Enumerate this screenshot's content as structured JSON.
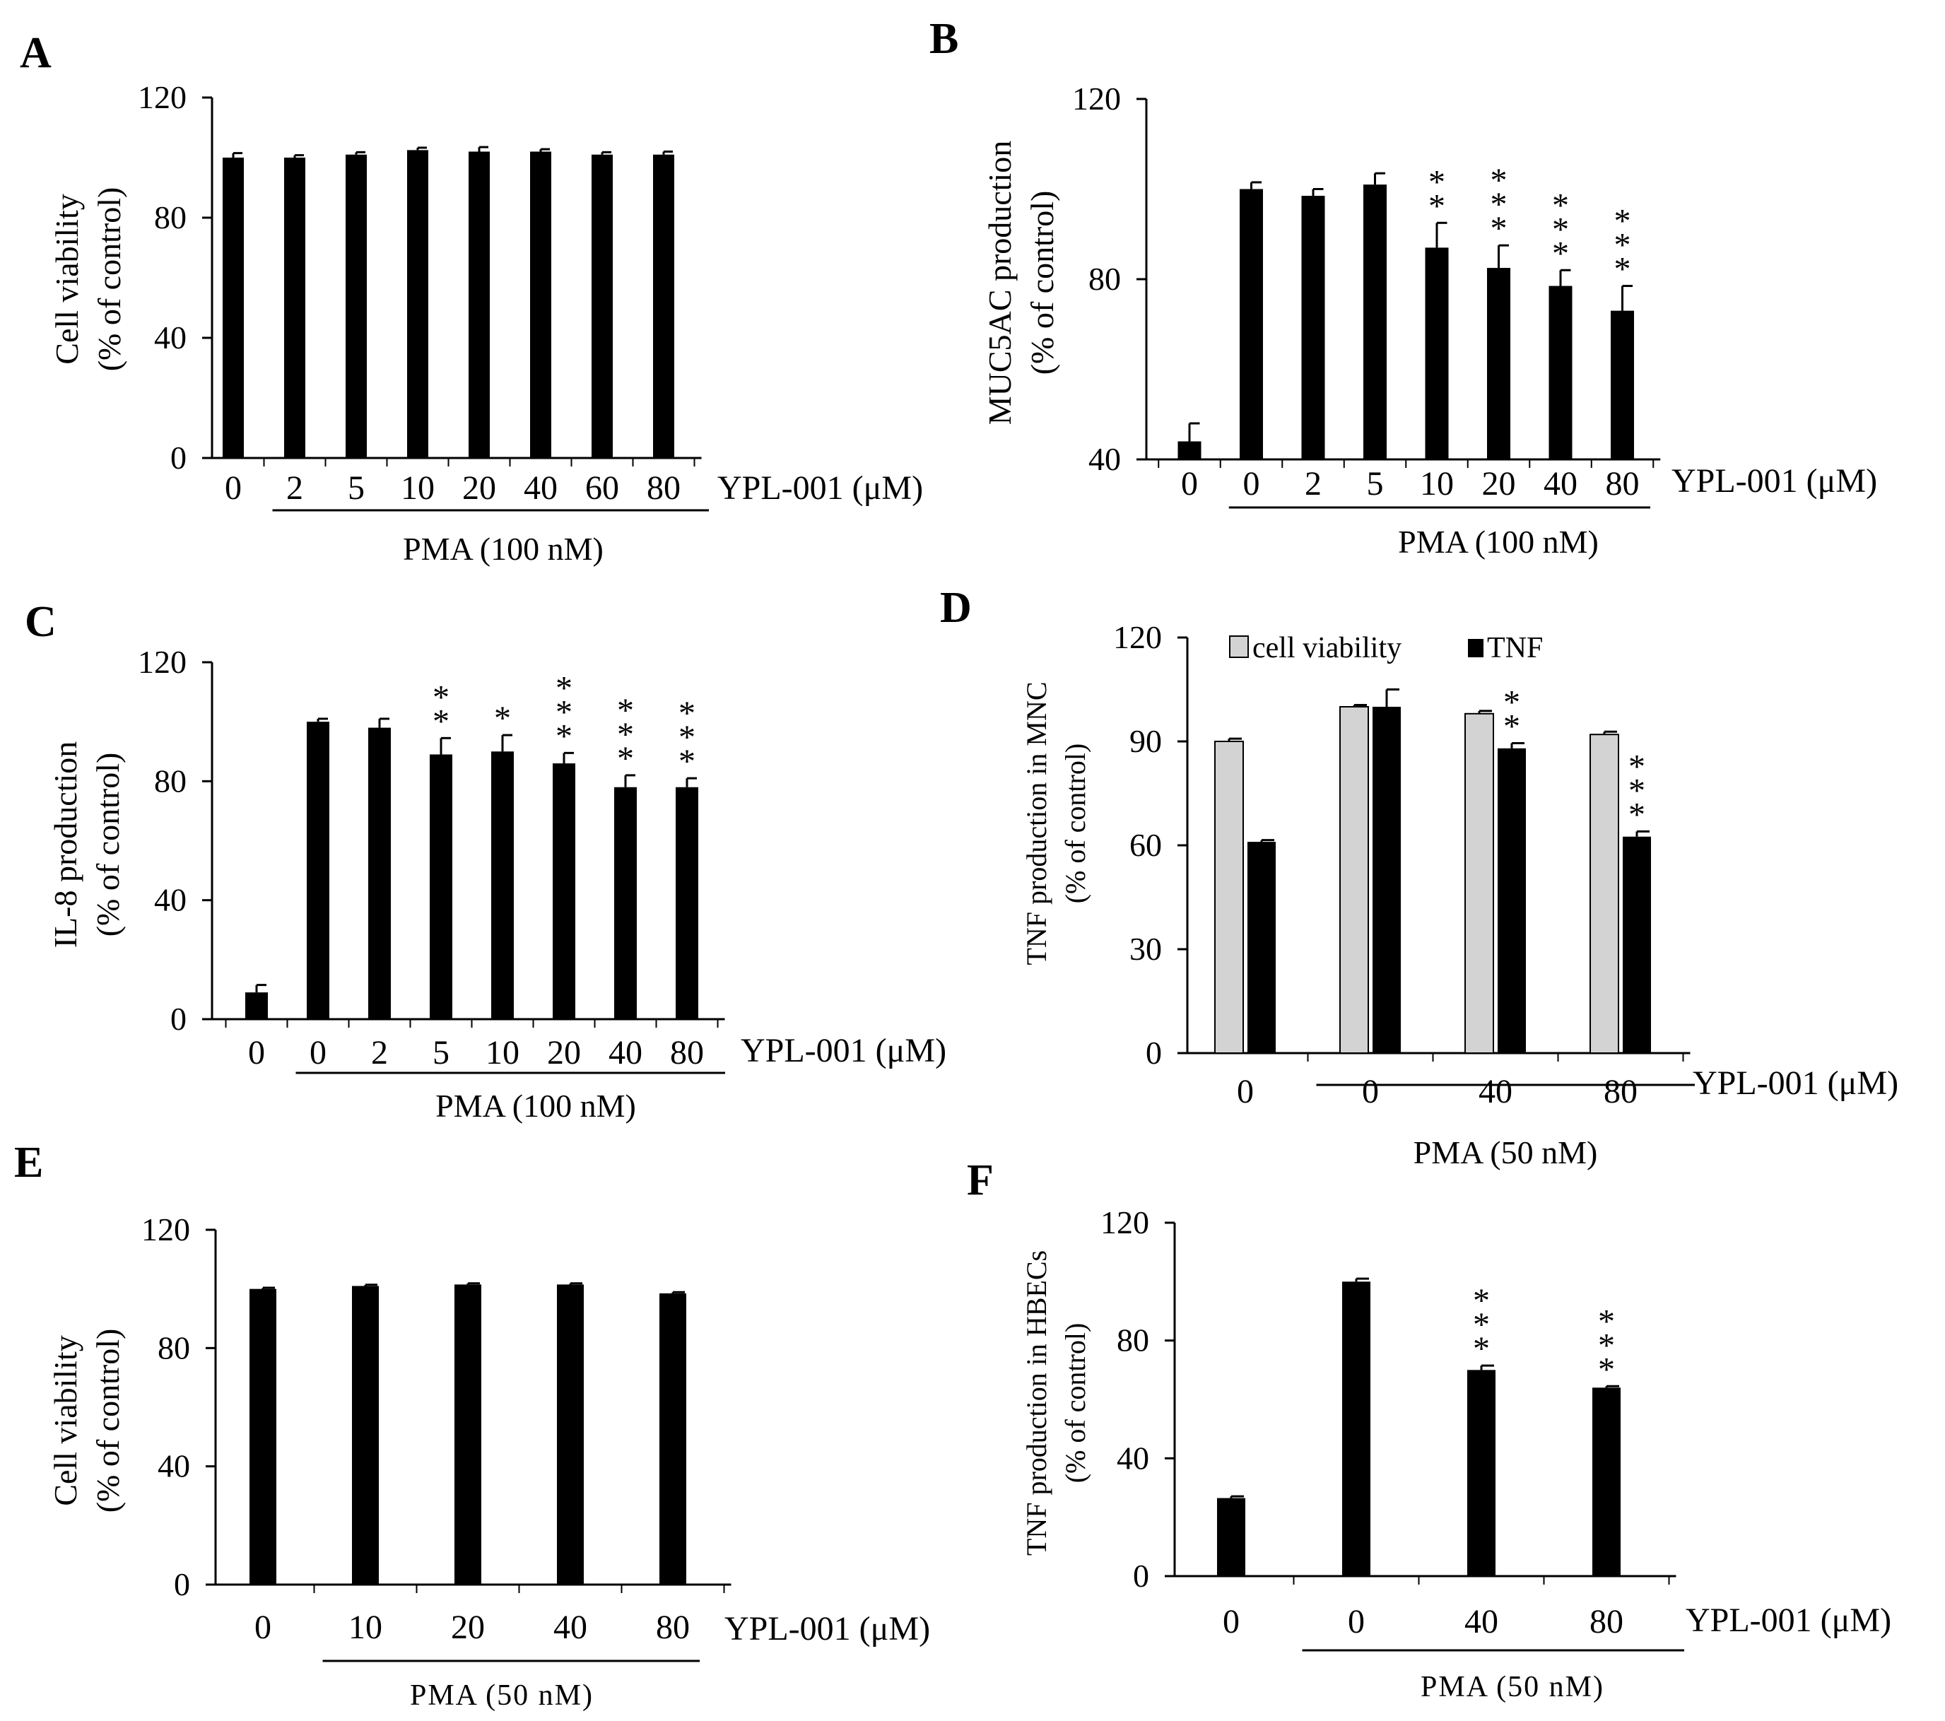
{
  "chart_data": [
    {
      "panel": "A",
      "type": "bar",
      "ylabel": "Cell viability",
      "ylabel2": "(% of control)",
      "ylim": [
        0,
        120
      ],
      "yticks": [
        "0",
        "40",
        "80",
        "120"
      ],
      "categories": [
        "0",
        "2",
        "5",
        "10",
        "20",
        "40",
        "60",
        "80"
      ],
      "values": [
        100,
        100,
        101,
        102.5,
        102,
        102,
        101,
        101
      ],
      "errors": [
        1.5,
        0.8,
        0.8,
        0.8,
        1.5,
        0.8,
        0.8,
        1
      ],
      "stars": [
        "",
        "",
        "",
        "",
        "",
        "",
        "",
        ""
      ],
      "xtitle": "YPL-001 (μM)",
      "treatment": "PMA (100 nM)",
      "treatment_from": 1
    },
    {
      "panel": "B",
      "type": "bar",
      "ylabel": "MUC5AC production",
      "ylabel2": "(% of control)",
      "ylim": [
        40,
        120
      ],
      "yticks": [
        "40",
        "80",
        "120"
      ],
      "categories": [
        "0",
        "0",
        "2",
        "5",
        "10",
        "20",
        "40",
        "80"
      ],
      "values": [
        44,
        100,
        98.5,
        101,
        87,
        82.5,
        78.5,
        73
      ],
      "errors": [
        4,
        1.5,
        1.5,
        2.5,
        5.5,
        5,
        3.5,
        5.5
      ],
      "stars": [
        "",
        "",
        "",
        "",
        "**",
        "***",
        "***",
        "***"
      ],
      "xtitle": "YPL-001 (μM)",
      "treatment": "PMA (100 nM)",
      "treatment_from": 1
    },
    {
      "panel": "C",
      "type": "bar",
      "ylabel": "IL-8 production",
      "ylabel2": "(% of control)",
      "ylim": [
        0,
        120
      ],
      "yticks": [
        "0",
        "40",
        "80",
        "120"
      ],
      "categories": [
        "0",
        "0",
        "2",
        "5",
        "10",
        "20",
        "40",
        "80"
      ],
      "values": [
        9,
        100,
        98,
        89,
        90,
        86,
        78,
        78
      ],
      "errors": [
        2.5,
        1,
        3,
        5.5,
        5.5,
        3.5,
        4,
        3
      ],
      "stars": [
        "",
        "",
        "",
        "**",
        "*",
        "***",
        "***",
        "***"
      ],
      "xtitle": "YPL-001 (μM)",
      "treatment": "PMA (100 nM)",
      "treatment_from": 1
    },
    {
      "panel": "D",
      "type": "bar",
      "ylabel": "TNF production in MNC",
      "ylabel2": "(% of control)",
      "ylim": [
        0,
        120
      ],
      "yticks": [
        "0",
        "30",
        "60",
        "90",
        "120"
      ],
      "categories": [
        "0",
        "0",
        "40",
        "80"
      ],
      "series": [
        {
          "name": "cell viability",
          "color": "#d3d3d3",
          "values": [
            90,
            100,
            98,
            92
          ],
          "errors": [
            0.8,
            0.5,
            0.8,
            0.8
          ],
          "stars": [
            "",
            "",
            "",
            ""
          ]
        },
        {
          "name": "TNF",
          "color": "#000000",
          "values": [
            61,
            100,
            88,
            62.5
          ],
          "errors": [
            0.5,
            5,
            1.5,
            1.5
          ],
          "stars": [
            "",
            "",
            "**",
            "***"
          ]
        }
      ],
      "legend": "top",
      "xtitle": "YPL-001 (μM)",
      "treatment": "PMA (50 nM)",
      "treatment_from": 1
    },
    {
      "panel": "E",
      "type": "bar",
      "ylabel": "Cell viability",
      "ylabel2": "(% of control)",
      "ylim": [
        0,
        120
      ],
      "yticks": [
        "0",
        "40",
        "80",
        "120"
      ],
      "categories": [
        "0",
        "10",
        "20",
        "40",
        "80"
      ],
      "values": [
        100,
        101,
        101.5,
        101.5,
        98.5
      ],
      "errors": [
        0.4,
        0.4,
        0.4,
        0.4,
        0.4
      ],
      "stars": [
        "",
        "",
        "",
        "",
        ""
      ],
      "xtitle": "YPL-001 (μM)",
      "treatment": "PMA (50 nM)",
      "treatment_from": 1
    },
    {
      "panel": "F",
      "type": "bar",
      "ylabel": "TNF production in HBECs",
      "ylabel2": "(% of control)",
      "ylim": [
        0,
        120
      ],
      "yticks": [
        "0",
        "40",
        "80",
        "120"
      ],
      "categories": [
        "0",
        "0",
        "40",
        "80"
      ],
      "values": [
        26.5,
        100,
        70,
        64
      ],
      "errors": [
        0.6,
        1,
        1.5,
        0.5
      ],
      "stars": [
        "",
        "",
        "***",
        "***"
      ],
      "xtitle": "YPL-001 (μM)",
      "treatment": "PMA (50 nM)",
      "treatment_from": 1
    }
  ]
}
